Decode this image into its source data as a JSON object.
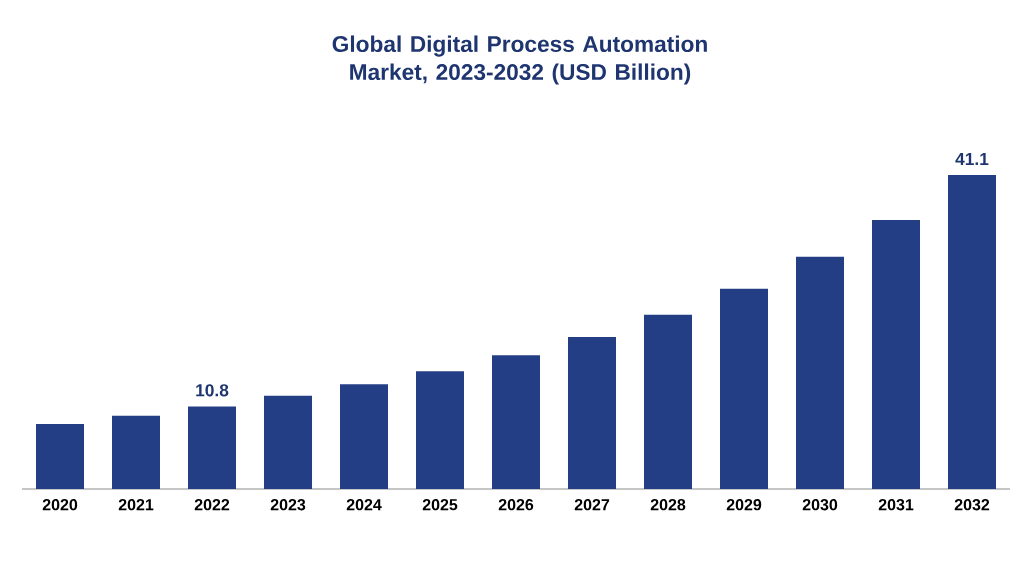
{
  "chart_data": {
    "type": "bar",
    "title": "Global Digital Process Automation Market, 2023-2032 (USD Billion)",
    "categories": [
      "2020",
      "2021",
      "2022",
      "2023",
      "2024",
      "2025",
      "2026",
      "2027",
      "2028",
      "2029",
      "2030",
      "2031",
      "2032"
    ],
    "values": [
      8.5,
      9.6,
      10.8,
      12.2,
      13.7,
      15.4,
      17.5,
      19.9,
      22.8,
      26.2,
      30.4,
      35.2,
      41.1
    ],
    "value_labels": [
      null,
      null,
      "10.8",
      null,
      null,
      null,
      null,
      null,
      null,
      null,
      null,
      null,
      "41.1"
    ],
    "color": "#233e84"
  }
}
